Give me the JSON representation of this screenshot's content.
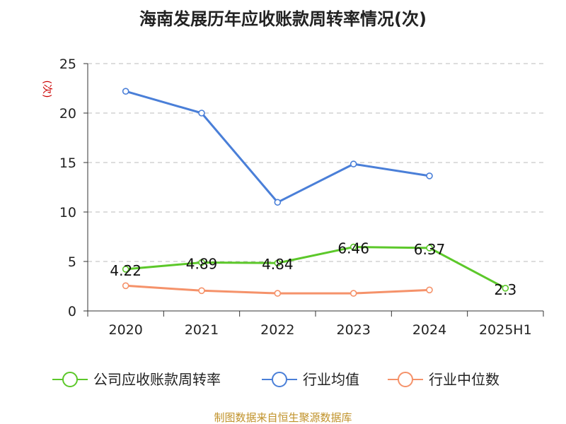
{
  "chart_data": {
    "type": "line",
    "title": "海南发展历年应收账款周转率情况(次)",
    "ylabel": "(次)",
    "categories": [
      "2020",
      "2021",
      "2022",
      "2023",
      "2024",
      "2025H1"
    ],
    "yticks": [
      "0",
      "5",
      "10",
      "15",
      "20",
      "25"
    ],
    "ylim": [
      0,
      25
    ],
    "grid": true,
    "legend_position": "bottom",
    "series": [
      {
        "name": "公司应收账款周转率",
        "color": "#5cc82a",
        "values": [
          4.22,
          4.89,
          4.84,
          6.46,
          6.37,
          2.3
        ],
        "labels": [
          "4.22",
          "4.89",
          "4.84",
          "6.46",
          "6.37",
          "2.3"
        ]
      },
      {
        "name": "行业均值",
        "color": "#4a7fd8",
        "values": [
          22.2,
          20.0,
          10.98,
          14.85,
          13.65,
          null
        ]
      },
      {
        "name": "行业中位数",
        "color": "#f5926a",
        "values": [
          2.55,
          2.05,
          1.78,
          1.78,
          2.12,
          null
        ]
      }
    ]
  },
  "source": "制图数据来自恒生聚源数据库"
}
